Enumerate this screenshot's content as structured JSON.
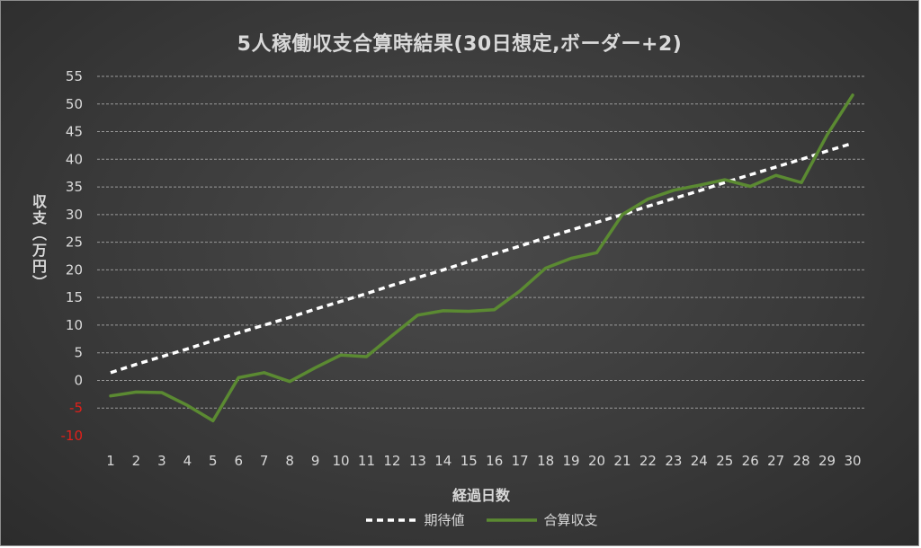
{
  "chart_data": {
    "type": "line",
    "title": "5人稼働収支合算時結果(30日想定,ボーダー+2)",
    "xlabel": "経過日数",
    "ylabel": "収支（万円）",
    "x": [
      1,
      2,
      3,
      4,
      5,
      6,
      7,
      8,
      9,
      10,
      11,
      12,
      13,
      14,
      15,
      16,
      17,
      18,
      19,
      20,
      21,
      22,
      23,
      24,
      25,
      26,
      27,
      28,
      29,
      30
    ],
    "ylim": [
      -10,
      55
    ],
    "yticks": [
      -10,
      -5,
      0,
      5,
      10,
      15,
      20,
      25,
      30,
      35,
      40,
      45,
      50,
      55
    ],
    "grid": true,
    "legend_position": "bottom",
    "series": [
      {
        "name": "期待値",
        "style": "dashed",
        "color": "#ffffff",
        "values": [
          1.4,
          2.9,
          4.3,
          5.7,
          7.2,
          8.6,
          10.0,
          11.4,
          12.9,
          14.3,
          15.7,
          17.2,
          18.6,
          20.0,
          21.5,
          22.9,
          24.3,
          25.8,
          27.2,
          28.6,
          30.0,
          31.5,
          32.9,
          34.3,
          35.8,
          37.2,
          38.6,
          40.0,
          41.5,
          42.9
        ]
      },
      {
        "name": "合算収支",
        "style": "solid",
        "color": "#5b8a32",
        "values": [
          -2.8,
          -2.1,
          -2.2,
          -4.5,
          -7.3,
          0.5,
          1.4,
          -0.2,
          2.3,
          4.6,
          4.3,
          8.1,
          11.8,
          12.6,
          12.5,
          12.8,
          16.2,
          20.3,
          22.1,
          23.1,
          30.0,
          32.8,
          34.4,
          35.3,
          36.3,
          35.1,
          37.1,
          35.8,
          44.4,
          51.6
        ]
      }
    ],
    "negative_tick_color": "#e0201a",
    "tick_color": "#d9d9d9",
    "grid_color": "#9a9a9a"
  }
}
